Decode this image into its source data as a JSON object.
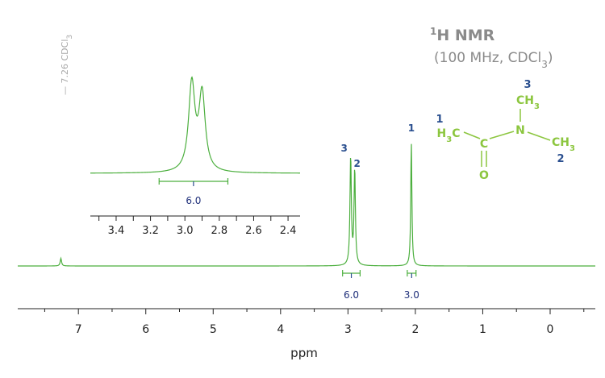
{
  "chart_data": {
    "type": "line",
    "title": "1H NMR",
    "subtitle": "(100 MHz, CDCl3)",
    "xlabel": "ppm",
    "xlim": [
      7.9,
      -0.85
    ],
    "x_ticks": [
      7,
      6,
      5,
      4,
      3,
      2,
      1,
      0
    ],
    "solvent_label": "— 7.26 CDCl3",
    "series": [
      {
        "peaks": [
          {
            "ppm": 7.26,
            "height": 0.07,
            "width": 0.012
          },
          {
            "ppm": 2.96,
            "height": 1.0,
            "width": 0.012
          },
          {
            "ppm": 2.9,
            "height": 0.88,
            "width": 0.012
          },
          {
            "ppm": 2.06,
            "height": 1.14,
            "width": 0.01
          }
        ]
      }
    ],
    "peak_labels": [
      {
        "ppm": 2.96,
        "label": "3"
      },
      {
        "ppm": 2.9,
        "label": "2"
      },
      {
        "ppm": 2.06,
        "label": "1"
      }
    ],
    "integrations": [
      {
        "from": 3.08,
        "to": 2.82,
        "value": "6.0"
      },
      {
        "from": 2.12,
        "to": 1.99,
        "value": "3.0"
      }
    ],
    "inset": {
      "xlim": [
        3.55,
        2.33
      ],
      "x_ticks": [
        "3.4",
        "3.2",
        "3.0",
        "2.8",
        "2.6",
        "2.4"
      ],
      "integration": {
        "from": 3.15,
        "to": 2.75,
        "value": "6.0"
      }
    }
  },
  "molecule": {
    "c1": "H3C",
    "carbonyl_c": "C",
    "oxygen": "O",
    "nitrogen": "N",
    "ch3_top": "CH3",
    "ch3_right": "CH3",
    "label_1": "1",
    "label_2": "2",
    "label_3": "3"
  },
  "colors": {
    "spectrum": "#4caf3e",
    "integration": "#4caf3e",
    "label_blue": "#2a4f8f",
    "integral_text": "#1f2f7a",
    "molecule": "#8cc63f",
    "title_gray": "#8a8a8a"
  }
}
